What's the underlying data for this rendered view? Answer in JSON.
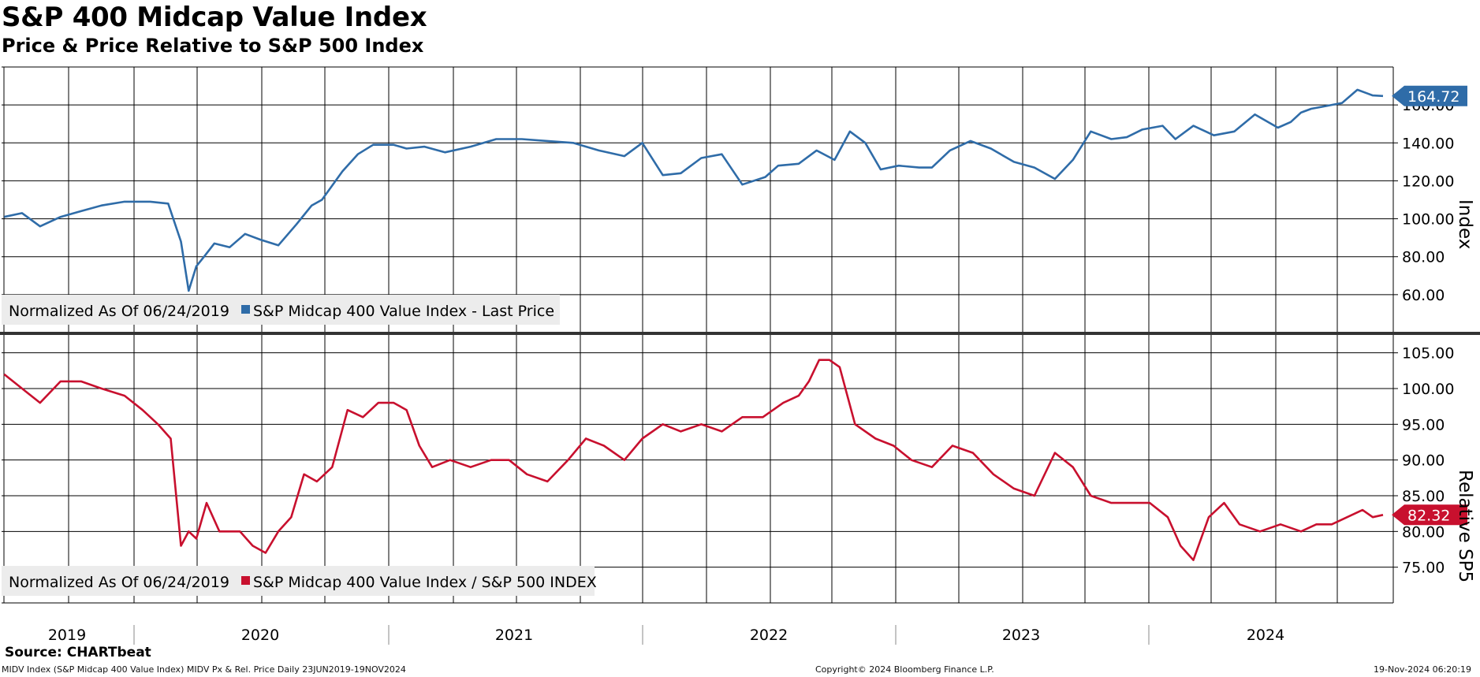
{
  "header": {
    "title": "S&P 400 Midcap Value Index",
    "subtitle": "Price & Price Relative to S&P 500 Index"
  },
  "source": "Source: CHARTbeat",
  "footer": {
    "left": "MIDV Index (S&P Midcap 400 Value Index) MIDV Px & Rel. Price  Daily 23JUN2019-19NOV2024",
    "center": "Copyright© 2024 Bloomberg Finance L.P.",
    "right": "19-Nov-2024 06:20:19"
  },
  "colors": {
    "price": "#2f6ca8",
    "relative": "#c8102e",
    "grid": "#000000",
    "legend_bg": "#ececec"
  },
  "chart_data": [
    {
      "type": "line",
      "name": "price-panel",
      "title": "S&P 400 Midcap Value Index",
      "ylabel": "Index",
      "ylim": [
        40,
        180
      ],
      "yticks": [
        "60.00",
        "80.00",
        "100.00",
        "120.00",
        "140.00",
        "160.00"
      ],
      "ytick_values": [
        60,
        80,
        100,
        120,
        140,
        160
      ],
      "legend_note": "Normalized As Of 06/24/2019",
      "legend_label": "S&P Midcap 400 Value Index - Last Price",
      "last_value": 164.72,
      "last_label": "164.72",
      "x": [
        2019.48,
        2019.55,
        2019.62,
        2019.7,
        2019.78,
        2019.86,
        2019.95,
        2020.05,
        2020.12,
        2020.17,
        2020.2,
        2020.23,
        2020.26,
        2020.3,
        2020.36,
        2020.42,
        2020.48,
        2020.55,
        2020.62,
        2020.68,
        2020.72,
        2020.8,
        2020.86,
        2020.92,
        2021.0,
        2021.05,
        2021.12,
        2021.2,
        2021.3,
        2021.4,
        2021.5,
        2021.6,
        2021.7,
        2021.8,
        2021.9,
        2021.97,
        2022.05,
        2022.12,
        2022.2,
        2022.28,
        2022.36,
        2022.45,
        2022.5,
        2022.58,
        2022.65,
        2022.72,
        2022.78,
        2022.84,
        2022.9,
        2022.97,
        2023.05,
        2023.1,
        2023.17,
        2023.25,
        2023.33,
        2023.42,
        2023.5,
        2023.58,
        2023.65,
        2023.72,
        2023.8,
        2023.86,
        2023.92,
        2024.0,
        2024.05,
        2024.12,
        2024.2,
        2024.28,
        2024.36,
        2024.45,
        2024.5,
        2024.54,
        2024.58,
        2024.62,
        2024.66,
        2024.7,
        2024.76,
        2024.8,
        2024.82,
        2024.86
      ],
      "values": [
        101,
        103,
        96,
        101,
        104,
        107,
        109,
        109,
        108,
        88,
        62,
        75,
        80,
        87,
        85,
        92,
        89,
        86,
        97,
        107,
        110,
        125,
        134,
        139,
        139,
        137,
        138,
        135,
        138,
        142,
        142,
        141,
        140,
        136,
        133,
        140,
        123,
        124,
        132,
        134,
        118,
        122,
        128,
        129,
        136,
        131,
        146,
        140,
        126,
        128,
        127,
        127,
        136,
        141,
        137,
        130,
        127,
        121,
        131,
        146,
        142,
        143,
        147,
        149,
        142,
        149,
        144,
        146,
        155,
        148,
        151,
        156,
        158,
        159,
        160,
        161,
        168,
        166,
        165,
        164.72
      ]
    },
    {
      "type": "line",
      "name": "relative-panel",
      "ylabel": "Relative SP5",
      "ylim": [
        70,
        107.5
      ],
      "yticks": [
        "75.00",
        "80.00",
        "85.00",
        "90.00",
        "95.00",
        "100.00",
        "105.00"
      ],
      "ytick_values": [
        75,
        80,
        85,
        90,
        95,
        100,
        105
      ],
      "legend_note": "Normalized As Of 06/24/2019",
      "legend_label": "S&P Midcap 400 Value Index / S&P 500 INDEX",
      "last_value": 82.32,
      "last_label": "82.32",
      "x": [
        2019.48,
        2019.55,
        2019.62,
        2019.7,
        2019.78,
        2019.86,
        2019.95,
        2020.02,
        2020.08,
        2020.13,
        2020.17,
        2020.2,
        2020.23,
        2020.27,
        2020.32,
        2020.36,
        2020.4,
        2020.45,
        2020.5,
        2020.55,
        2020.6,
        2020.65,
        2020.7,
        2020.76,
        2020.82,
        2020.88,
        2020.94,
        2021.0,
        2021.05,
        2021.1,
        2021.15,
        2021.22,
        2021.3,
        2021.38,
        2021.45,
        2021.52,
        2021.6,
        2021.68,
        2021.75,
        2021.82,
        2021.9,
        2021.97,
        2022.05,
        2022.12,
        2022.2,
        2022.28,
        2022.36,
        2022.44,
        2022.52,
        2022.58,
        2022.62,
        2022.66,
        2022.7,
        2022.74,
        2022.8,
        2022.88,
        2022.95,
        2023.02,
        2023.1,
        2023.18,
        2023.26,
        2023.34,
        2023.42,
        2023.5,
        2023.58,
        2023.65,
        2023.72,
        2023.8,
        2023.88,
        2023.95,
        2024.02,
        2024.07,
        2024.12,
        2024.18,
        2024.24,
        2024.3,
        2024.38,
        2024.46,
        2024.54,
        2024.6,
        2024.66,
        2024.72,
        2024.78,
        2024.82,
        2024.86
      ],
      "values": [
        102,
        100,
        98,
        101,
        101,
        100,
        99,
        97,
        95,
        93,
        78,
        80,
        79,
        84,
        80,
        80,
        80,
        78,
        77,
        80,
        82,
        88,
        87,
        89,
        97,
        96,
        98,
        98,
        97,
        92,
        89,
        90,
        89,
        90,
        90,
        88,
        87,
        90,
        93,
        92,
        90,
        93,
        95,
        94,
        95,
        94,
        96,
        96,
        98,
        99,
        101,
        104,
        104,
        103,
        95,
        93,
        92,
        90,
        89,
        92,
        91,
        88,
        86,
        85,
        91,
        89,
        85,
        84,
        84,
        84,
        82,
        78,
        76,
        82,
        84,
        81,
        80,
        81,
        80,
        81,
        81,
        82,
        83,
        82,
        82.32
      ]
    }
  ],
  "x_axis": {
    "years": [
      "2019",
      "2020",
      "2021",
      "2022",
      "2023",
      "2024"
    ],
    "year_values": [
      2019,
      2020,
      2021,
      2022,
      2023,
      2024
    ]
  }
}
